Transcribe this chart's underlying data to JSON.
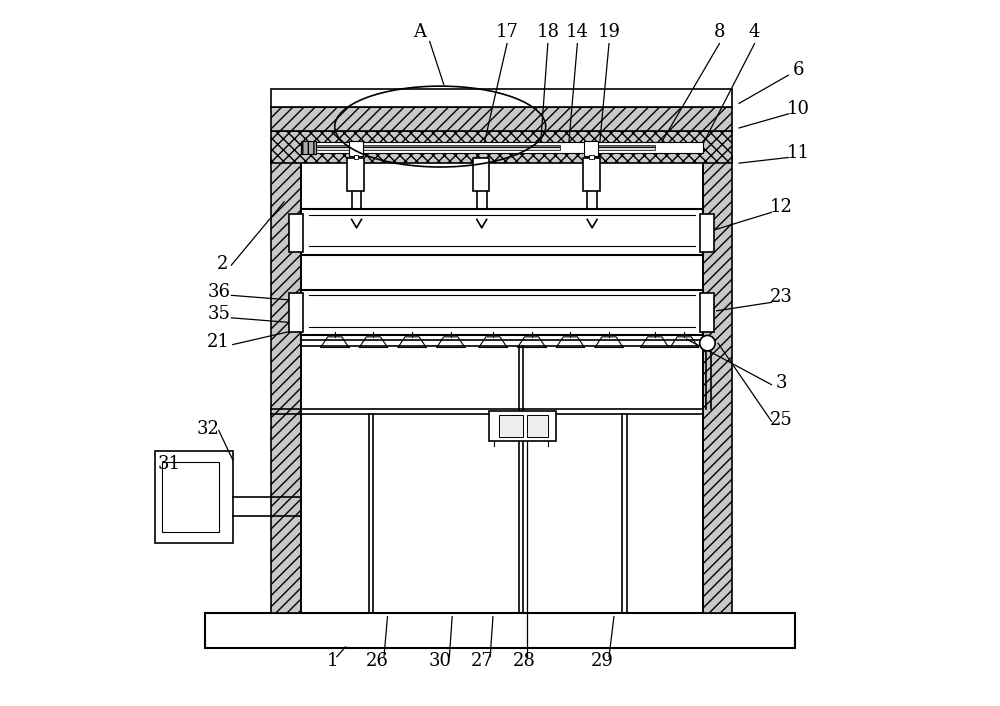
{
  "bg_color": "#ffffff",
  "line_color": "#000000",
  "figsize": [
    10.0,
    7.06
  ],
  "dpi": 100
}
